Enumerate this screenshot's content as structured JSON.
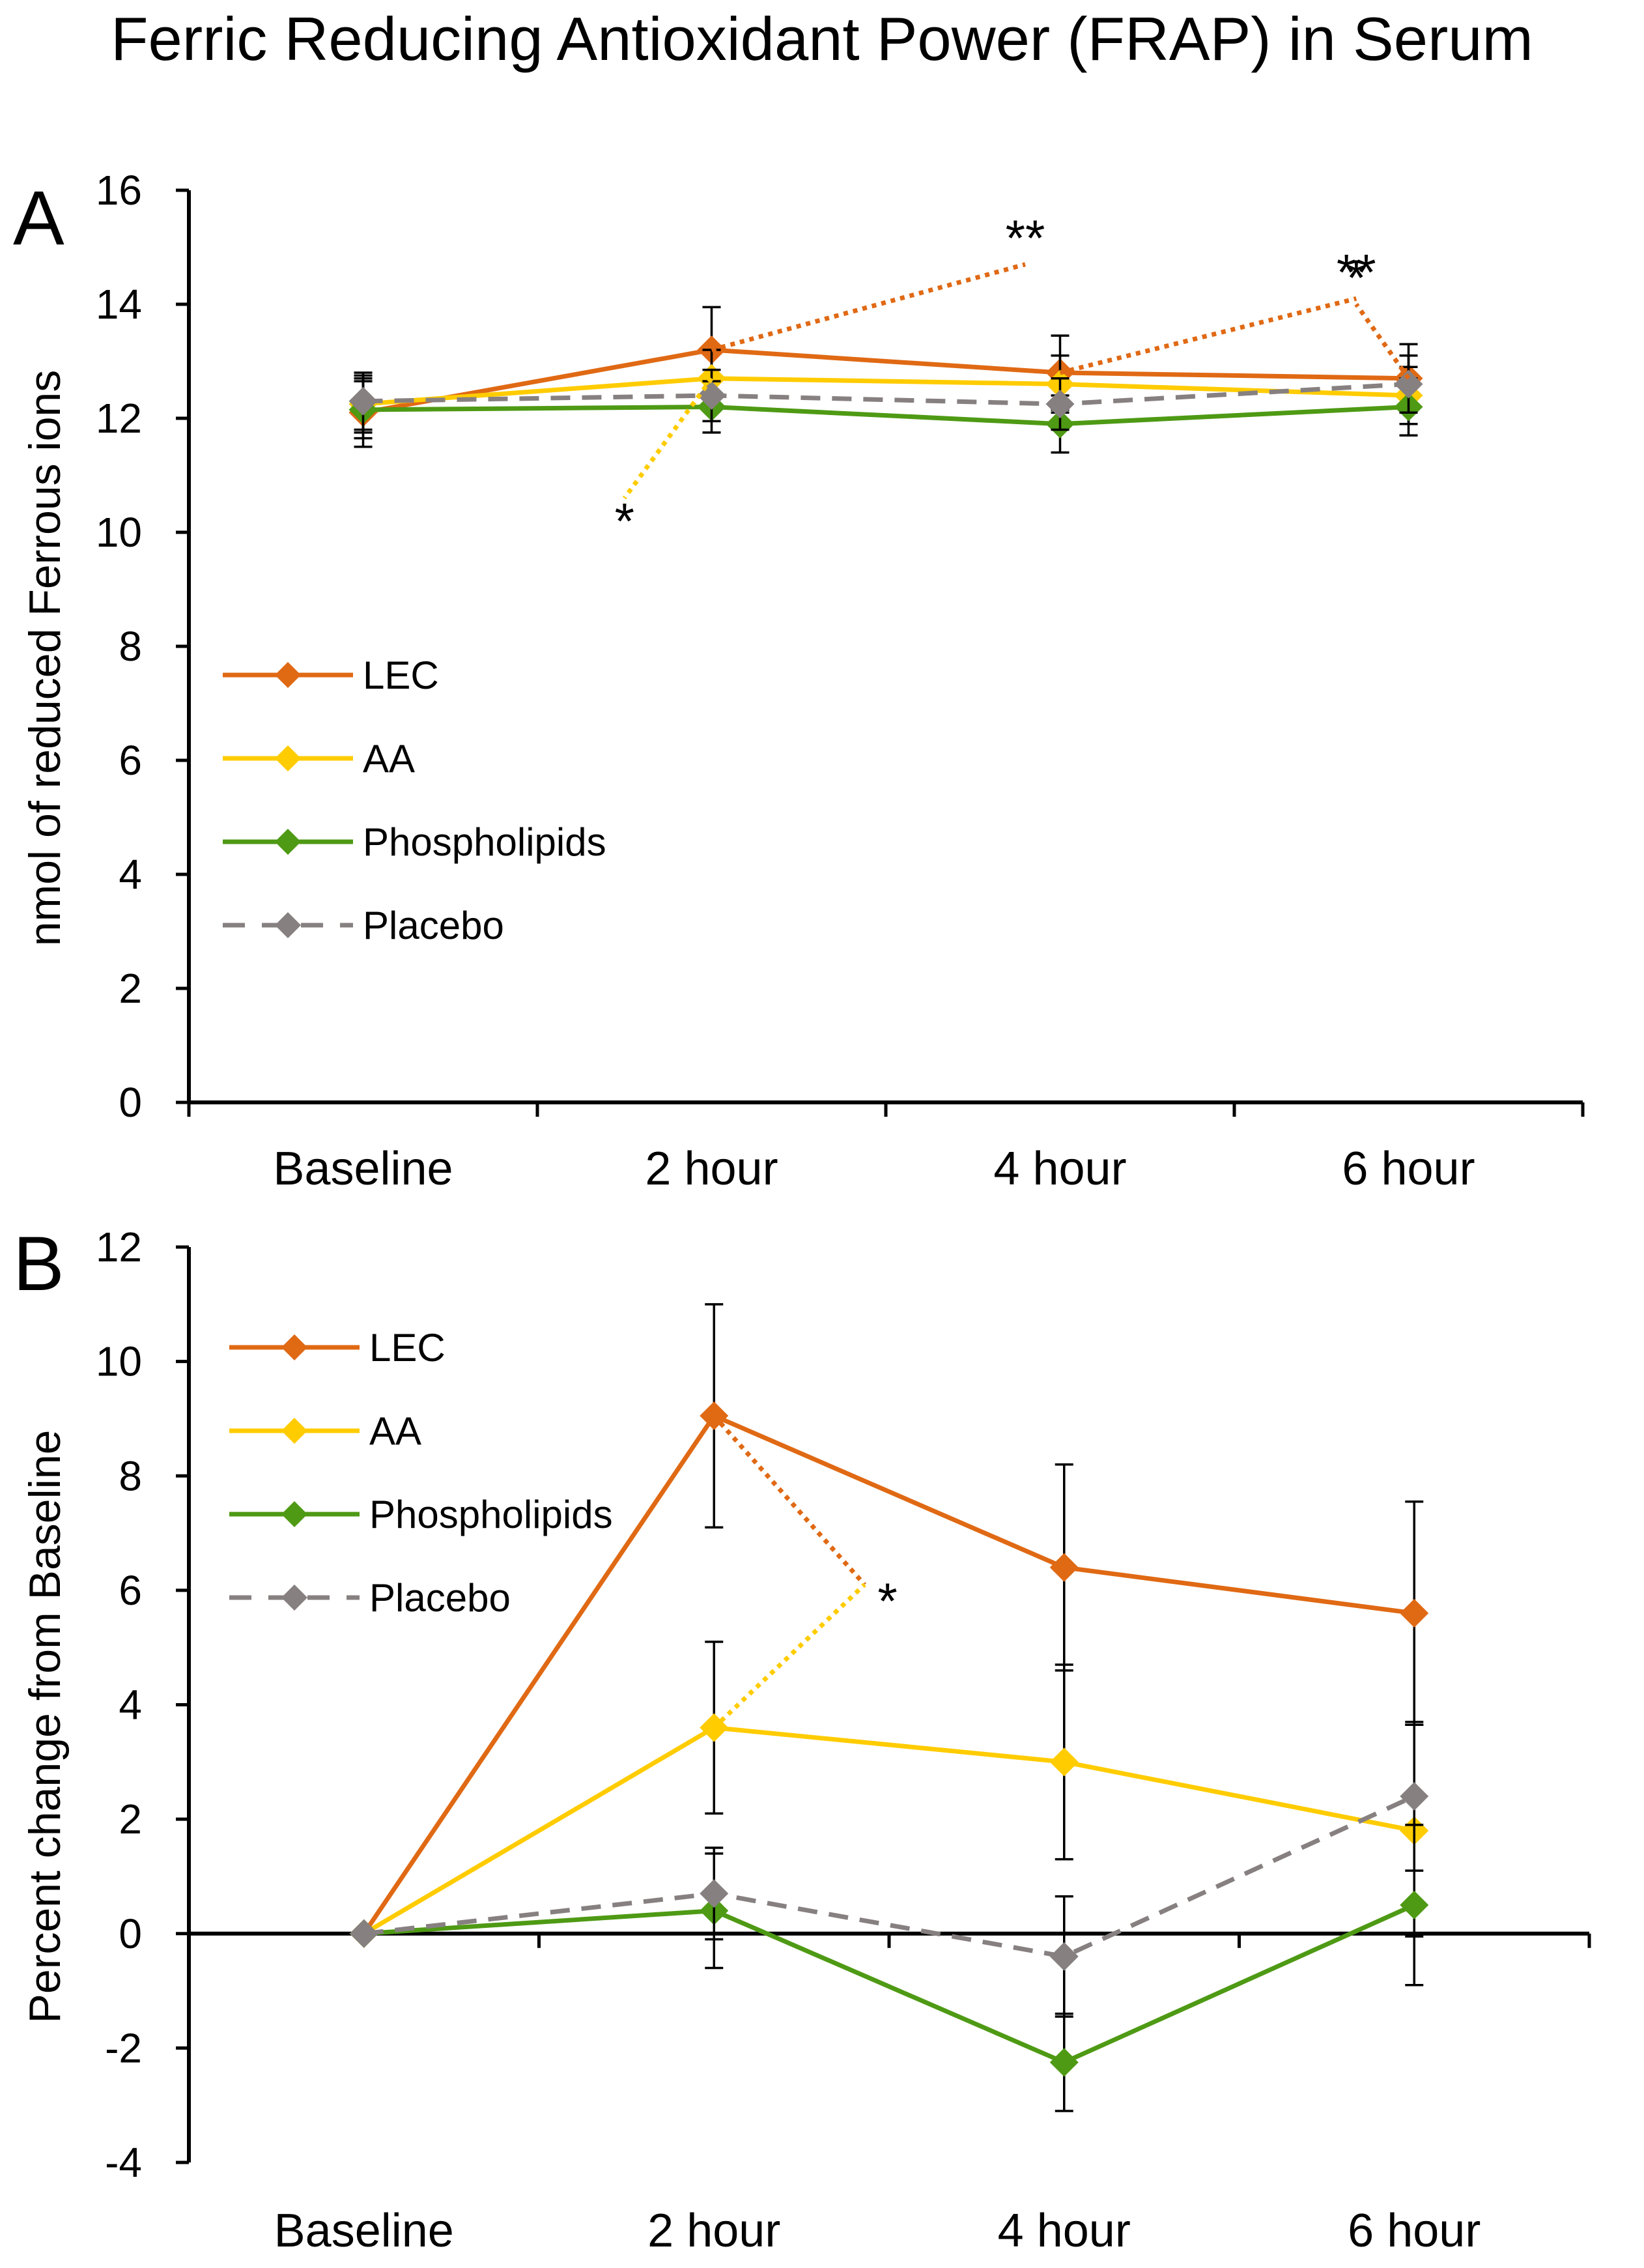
{
  "title": "Ferric Reducing Antioxidant Power (FRAP) in Serum",
  "colors": {
    "LEC": "#E06914",
    "AA": "#FFCC00",
    "Phospholipids": "#4E9A14",
    "Placebo": "#878080",
    "axis": "#000000"
  },
  "chart_data": [
    {
      "type": "line",
      "panel": "A",
      "title": "",
      "xlabel": "",
      "ylabel": "nmol of reduced Ferrous ions",
      "categories": [
        "Baseline",
        "2 hour",
        "4 hour",
        "6 hour"
      ],
      "ylim": [
        0,
        16
      ],
      "yticks": [
        0,
        2,
        4,
        6,
        8,
        10,
        12,
        14,
        16
      ],
      "grid": false,
      "legend_position": "middle-left",
      "series": [
        {
          "name": "LEC",
          "values": [
            12.1,
            13.2,
            12.8,
            12.7
          ],
          "errors": [
            0.6,
            0.75,
            0.65,
            0.6
          ],
          "dash": false
        },
        {
          "name": "AA",
          "values": [
            12.25,
            12.7,
            12.6,
            12.4
          ],
          "errors": [
            0.5,
            0.5,
            0.5,
            0.5
          ],
          "dash": false
        },
        {
          "name": "Phospholipids",
          "values": [
            12.15,
            12.2,
            11.9,
            12.2
          ],
          "errors": [
            0.5,
            0.45,
            0.5,
            0.5
          ],
          "dash": false
        },
        {
          "name": "Placebo",
          "values": [
            12.3,
            12.4,
            12.25,
            12.6
          ],
          "errors": [
            0.5,
            0.45,
            0.45,
            0.5
          ],
          "dash": true
        }
      ],
      "annotations": [
        {
          "text": "**",
          "series": "LEC",
          "x": "2 hour",
          "mark_x": 1.9,
          "mark_y": 14.7
        },
        {
          "text": "**",
          "series": "LEC",
          "x": "4 hour",
          "mark_x": 2.85,
          "mark_y": 14.1
        },
        {
          "text": "*",
          "series": "LEC",
          "x": "6 hour",
          "mark_x": 2.85,
          "mark_y": 14.0
        },
        {
          "text": "*",
          "series": "AA",
          "x": "2 hour",
          "mark_x": 0.75,
          "mark_y": 10.6
        }
      ]
    },
    {
      "type": "line",
      "panel": "B",
      "title": "",
      "xlabel": "",
      "ylabel": "Percent change from Baseline",
      "categories": [
        "Baseline",
        "2 hour",
        "4 hour",
        "6 hour"
      ],
      "ylim": [
        -4,
        12
      ],
      "yticks": [
        -4,
        -2,
        0,
        2,
        4,
        6,
        8,
        10,
        12
      ],
      "grid": false,
      "legend_position": "top-left",
      "series": [
        {
          "name": "LEC",
          "values": [
            0,
            9.05,
            6.4,
            5.6
          ],
          "errors": [
            0,
            1.95,
            1.8,
            1.95
          ],
          "dash": false
        },
        {
          "name": "AA",
          "values": [
            0,
            3.6,
            3.0,
            1.8
          ],
          "errors": [
            0,
            1.5,
            1.7,
            1.85
          ],
          "dash": false
        },
        {
          "name": "Phospholipids",
          "values": [
            0,
            0.4,
            -2.25,
            0.5
          ],
          "errors": [
            0,
            1.0,
            0.85,
            1.4
          ],
          "dash": false
        },
        {
          "name": "Placebo",
          "values": [
            0,
            0.7,
            -0.4,
            2.4
          ],
          "errors": [
            0,
            0.8,
            1.05,
            1.3
          ],
          "dash": true
        }
      ],
      "annotations": [
        {
          "text": "*",
          "series": "LEC vs AA",
          "x": "2 hour",
          "mark_x": 1.43,
          "mark_y": 6.1
        }
      ]
    }
  ]
}
